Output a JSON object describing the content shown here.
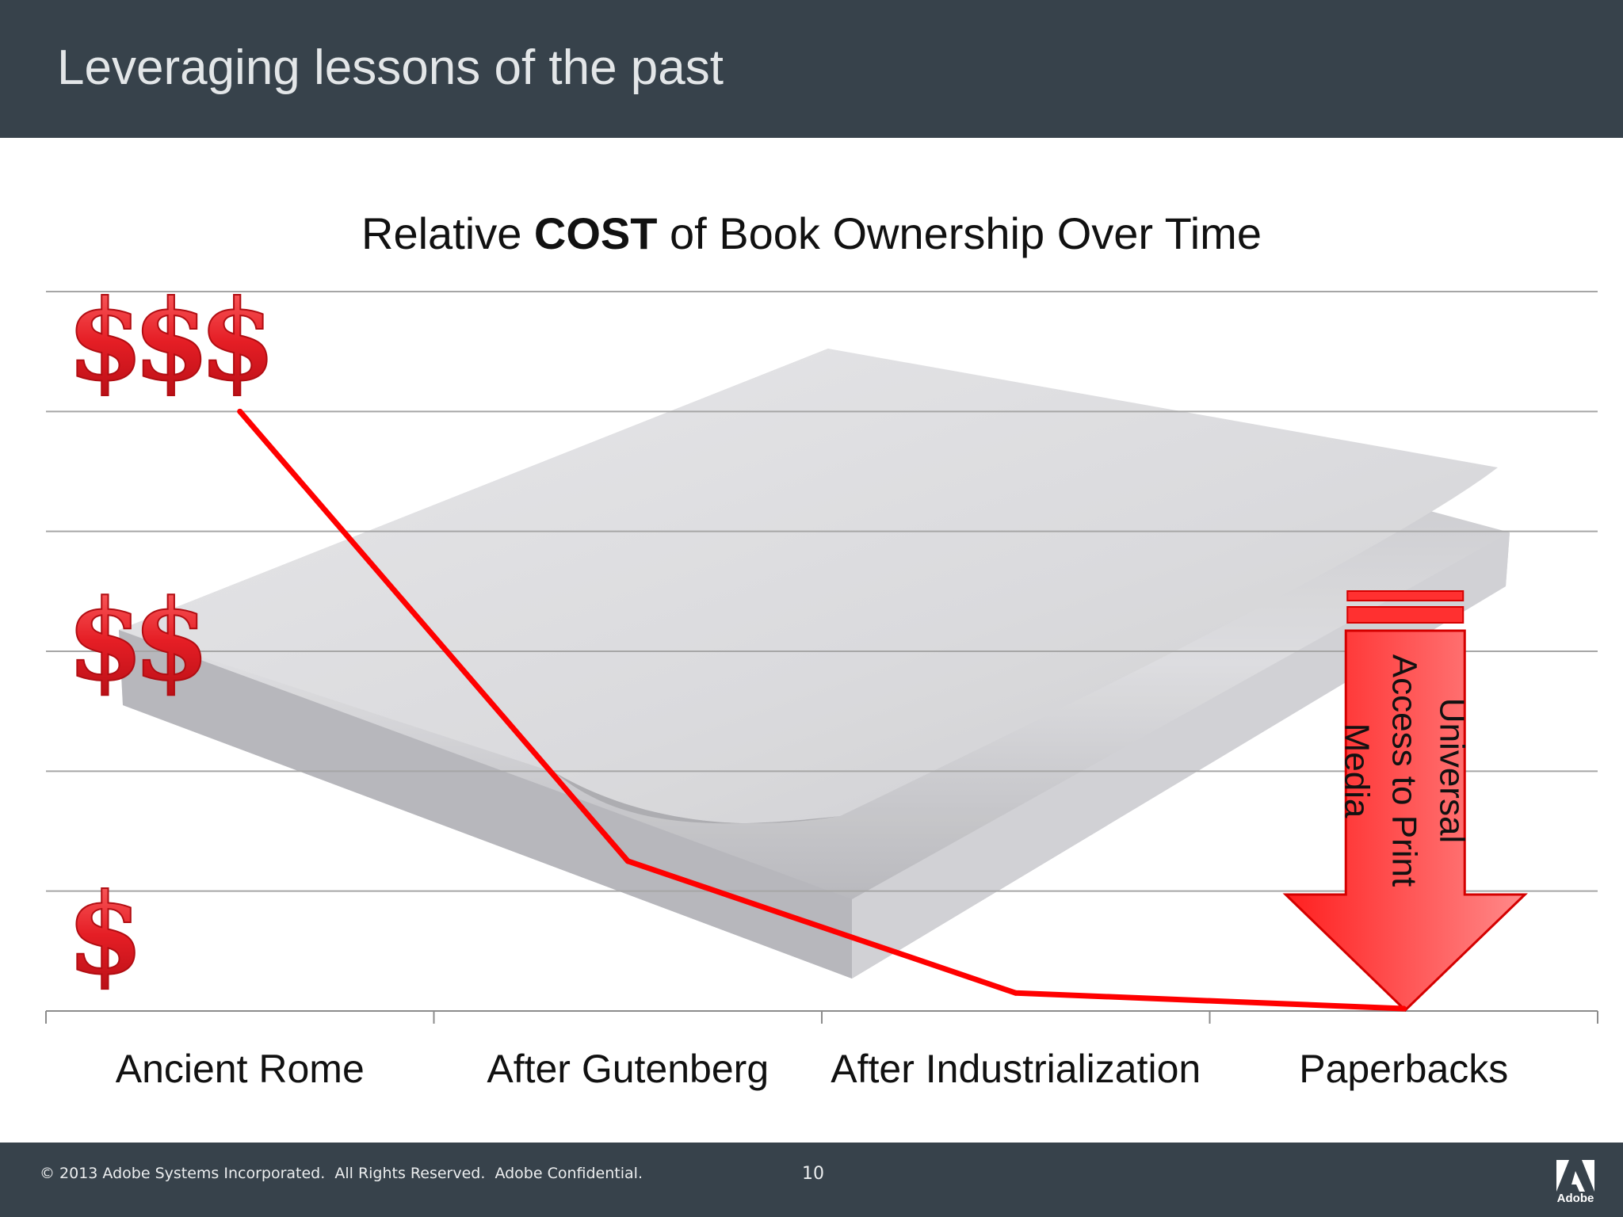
{
  "header": {
    "title": "Leveraging lessons of the past"
  },
  "footer": {
    "copyright": "© 2013 Adobe Systems Incorporated.  All Rights Reserved.  Adobe Confidential.",
    "page_number": "10",
    "logo_text": "Adobe"
  },
  "chart_data": {
    "type": "line",
    "title_parts": {
      "before": "Relative ",
      "bold": "COST",
      "after": " of Book Ownership Over Time"
    },
    "categories": [
      "Ancient Rome",
      "After Gutenberg",
      "After Industrialization",
      "Paperbacks"
    ],
    "series": [
      {
        "values": [
          5,
          1.25,
          0.15,
          0.02
        ]
      }
    ],
    "ylim": [
      0,
      6
    ],
    "y_markers": [
      {
        "label": "$$$",
        "value": 5.6
      },
      {
        "label": "$$",
        "value": 3.1
      },
      {
        "label": "$",
        "value": 0.65
      }
    ],
    "annotation": {
      "text_lines": [
        "Universal",
        "Access to Print",
        "Media"
      ]
    },
    "grid": true,
    "legend": "none",
    "colors": {
      "line": "#ff0000",
      "grid": "#a6a6a6",
      "dollar": "#e81b23",
      "arrow": "#ff3b3b"
    }
  }
}
